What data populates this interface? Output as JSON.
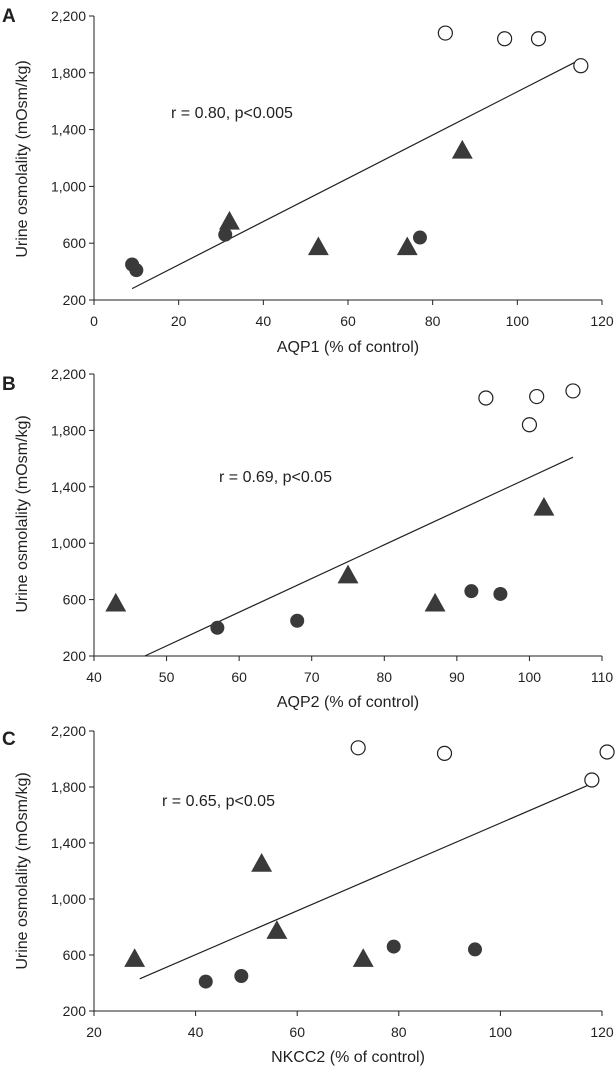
{
  "colors": {
    "ink": "#231f20",
    "filled_marker": "#3a3a3a",
    "open_marker_fill": "#ffffff"
  },
  "chart_data": [
    {
      "type": "scatter",
      "panel": "A",
      "xlabel": "AQP1 (% of control)",
      "ylabel": "Urine osmolality (mOsm/kg)",
      "xlim": [
        0,
        120
      ],
      "ylim": [
        200,
        2200
      ],
      "x_ticks": [
        0,
        20,
        40,
        60,
        80,
        100,
        120
      ],
      "y_ticks": [
        200,
        600,
        1000,
        1400,
        1800,
        2200
      ],
      "x_tick_labels": [
        "0",
        "20",
        "40",
        "60",
        "80",
        "100",
        "120"
      ],
      "y_tick_labels": [
        "200",
        "600",
        "1,000",
        "1,400",
        "1,800",
        "2,200"
      ],
      "annotation": "r = 0.80, p<0.005",
      "series": [
        {
          "marker": "circle-filled",
          "points": [
            [
              9,
              450
            ],
            [
              10,
              410
            ],
            [
              31,
              660
            ],
            [
              77,
              640
            ]
          ]
        },
        {
          "marker": "triangle-filled",
          "points": [
            [
              32,
              750
            ],
            [
              53,
              570
            ],
            [
              74,
              570
            ],
            [
              87,
              1250
            ]
          ]
        },
        {
          "marker": "circle-open",
          "points": [
            [
              83,
              2080
            ],
            [
              97,
              2040
            ],
            [
              105,
              2040
            ],
            [
              115,
              1850
            ]
          ]
        }
      ],
      "regression_line": [
        [
          9,
          280
        ],
        [
          114,
          1880
        ]
      ]
    },
    {
      "type": "scatter",
      "panel": "B",
      "xlabel": "AQP2 (% of control)",
      "ylabel": "Urine osmolality (mOsm/kg)",
      "xlim": [
        40,
        110
      ],
      "ylim": [
        200,
        2200
      ],
      "x_ticks": [
        40,
        50,
        60,
        70,
        80,
        90,
        100,
        110
      ],
      "y_ticks": [
        200,
        600,
        1000,
        1400,
        1800,
        2200
      ],
      "x_tick_labels": [
        "40",
        "50",
        "60",
        "70",
        "80",
        "90",
        "100",
        "110"
      ],
      "y_tick_labels": [
        "200",
        "600",
        "1,000",
        "1,400",
        "1,800",
        "2,200"
      ],
      "annotation": "r = 0.69, p<0.05",
      "series": [
        {
          "marker": "circle-filled",
          "points": [
            [
              57,
              400
            ],
            [
              68,
              450
            ],
            [
              92,
              660
            ],
            [
              96,
              640
            ]
          ]
        },
        {
          "marker": "triangle-filled",
          "points": [
            [
              43,
              570
            ],
            [
              75,
              770
            ],
            [
              87,
              570
            ],
            [
              102,
              1250
            ]
          ]
        },
        {
          "marker": "circle-open",
          "points": [
            [
              94,
              2030
            ],
            [
              100,
              1840
            ],
            [
              101,
              2040
            ],
            [
              106,
              2080
            ]
          ]
        }
      ],
      "regression_line": [
        [
          47,
          200
        ],
        [
          106,
          1610
        ]
      ]
    },
    {
      "type": "scatter",
      "panel": "C",
      "xlabel": "NKCC2 (% of control)",
      "ylabel": "Urine osmolality (mOsm/kg)",
      "xlim": [
        20,
        120
      ],
      "ylim": [
        200,
        2200
      ],
      "x_ticks": [
        20,
        40,
        60,
        80,
        100,
        120
      ],
      "y_ticks": [
        200,
        600,
        1000,
        1400,
        1800,
        2200
      ],
      "x_tick_labels": [
        "20",
        "40",
        "60",
        "80",
        "100",
        "120"
      ],
      "y_tick_labels": [
        "200",
        "600",
        "1,000",
        "1,400",
        "1,800",
        "2,200"
      ],
      "annotation": "r = 0.65, p<0.05",
      "series": [
        {
          "marker": "circle-filled",
          "points": [
            [
              42,
              410
            ],
            [
              49,
              450
            ],
            [
              79,
              660
            ],
            [
              95,
              640
            ]
          ]
        },
        {
          "marker": "triangle-filled",
          "points": [
            [
              28,
              570
            ],
            [
              53,
              1250
            ],
            [
              56,
              770
            ],
            [
              73,
              570
            ]
          ]
        },
        {
          "marker": "circle-open",
          "points": [
            [
              72,
              2080
            ],
            [
              89,
              2040
            ],
            [
              118,
              1850
            ],
            [
              121,
              2050
            ]
          ]
        }
      ],
      "regression_line": [
        [
          29,
          430
        ],
        [
          119,
          1840
        ]
      ]
    }
  ]
}
